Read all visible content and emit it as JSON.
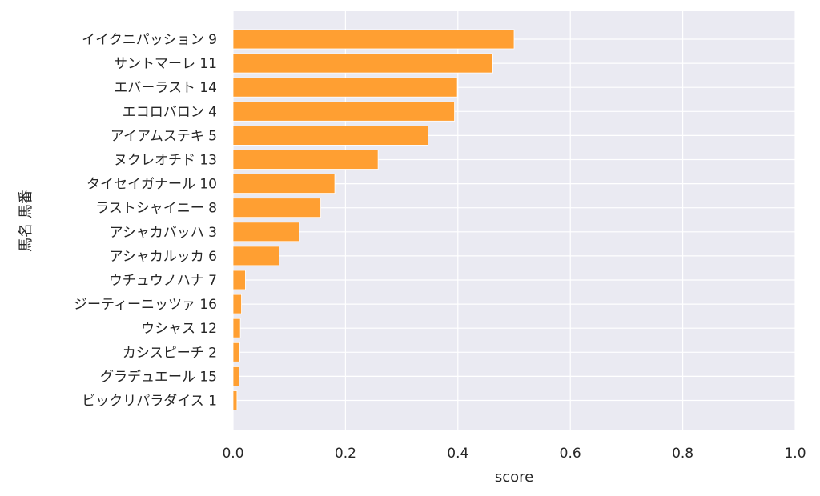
{
  "chart_data": {
    "type": "bar",
    "orientation": "horizontal",
    "title": "",
    "xlabel": "score",
    "ylabel": "馬名 馬番",
    "xlim": [
      0,
      1.0
    ],
    "xticks": [
      "0.0",
      "0.2",
      "0.4",
      "0.6",
      "0.8",
      "1.0"
    ],
    "grid": true,
    "bar_color": "#ff9f32",
    "background_color": "#eaeaf2",
    "grid_color": "#ffffff",
    "categories": [
      "イイクニパッション 9",
      "サントマーレ 11",
      "エバーラスト 14",
      "エコロバロン 4",
      "アイアムステキ 5",
      "ヌクレオチド 13",
      "タイセイガナール 10",
      "ラストシャイニー 8",
      "アシャカバッハ 3",
      "アシャカルッカ 6",
      "ウチュウノハナ 7",
      "ジーティーニッツァ 16",
      "ウシャス 12",
      "カシスピーチ 2",
      "グラデュエール 15",
      "ビックリパラダイス 1"
    ],
    "values": [
      0.5,
      0.462,
      0.399,
      0.394,
      0.347,
      0.258,
      0.181,
      0.156,
      0.118,
      0.082,
      0.022,
      0.015,
      0.013,
      0.012,
      0.011,
      0.007
    ]
  }
}
